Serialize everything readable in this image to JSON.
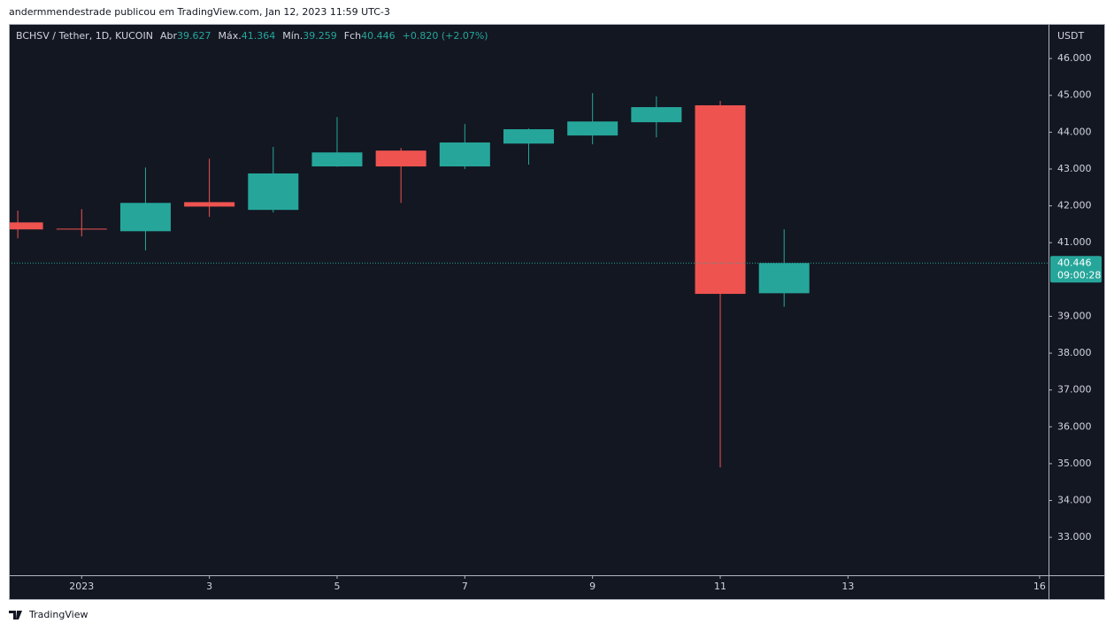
{
  "header": "andermmendestrade publicou em TradingView.com, Jan 12, 2023 11:59 UTC-3",
  "footer": "TradingView",
  "chart_data": {
    "type": "candlestick",
    "symbol": "BCHSV / Tether, 1D, KUCOIN",
    "open_label": "Abr",
    "high_label": "Máx.",
    "low_label": "Mín.",
    "close_label": "Fch",
    "change_label": "+0.820 (+2.07%)",
    "y_unit": "USDT",
    "countdown": "09:00:28",
    "x": [
      0,
      1,
      2,
      3,
      4,
      5,
      6,
      7,
      8,
      9,
      10,
      11,
      12
    ],
    "open": [
      41.55,
      41.38,
      41.31,
      42.1,
      41.89,
      43.07,
      43.5,
      43.07,
      43.69,
      43.91,
      44.27,
      44.73,
      39.627
    ],
    "high": [
      41.87,
      41.91,
      43.04,
      43.28,
      43.6,
      44.41,
      43.57,
      44.22,
      44.1,
      45.06,
      44.97,
      44.85,
      41.364
    ],
    "low": [
      41.12,
      41.17,
      40.79,
      41.7,
      41.82,
      43.06,
      42.08,
      43.0,
      43.12,
      43.67,
      43.86,
      34.9,
      39.259
    ],
    "close": [
      41.36,
      41.36,
      42.08,
      41.98,
      42.88,
      43.45,
      43.07,
      43.72,
      44.08,
      44.29,
      44.68,
      39.61,
      40.446
    ],
    "up_color": "#26a69a",
    "down_color": "#ef5350",
    "xlim": [
      -0.14,
      16.14
    ],
    "xticks": [
      {
        "value": 1,
        "label": "2023"
      },
      3,
      5,
      7,
      9,
      11,
      13,
      16
    ],
    "ylim": [
      31.97,
      46.94
    ],
    "yticks": [
      {
        "value": 46,
        "label": "46.000"
      },
      {
        "value": 45,
        "label": "45.000"
      },
      {
        "value": 44,
        "label": "44.000"
      },
      {
        "value": 43,
        "label": "43.000"
      },
      {
        "value": 42,
        "label": "42.000"
      },
      {
        "value": 41,
        "label": "41.000"
      },
      {
        "value": 39,
        "label": "39.000"
      },
      {
        "value": 38,
        "label": "38.000"
      },
      {
        "value": 37,
        "label": "37.000"
      },
      {
        "value": 36,
        "label": "36.000"
      },
      {
        "value": 35,
        "label": "35.000"
      },
      {
        "value": 34,
        "label": "34.000"
      },
      {
        "value": 33,
        "label": "33.000"
      }
    ]
  }
}
